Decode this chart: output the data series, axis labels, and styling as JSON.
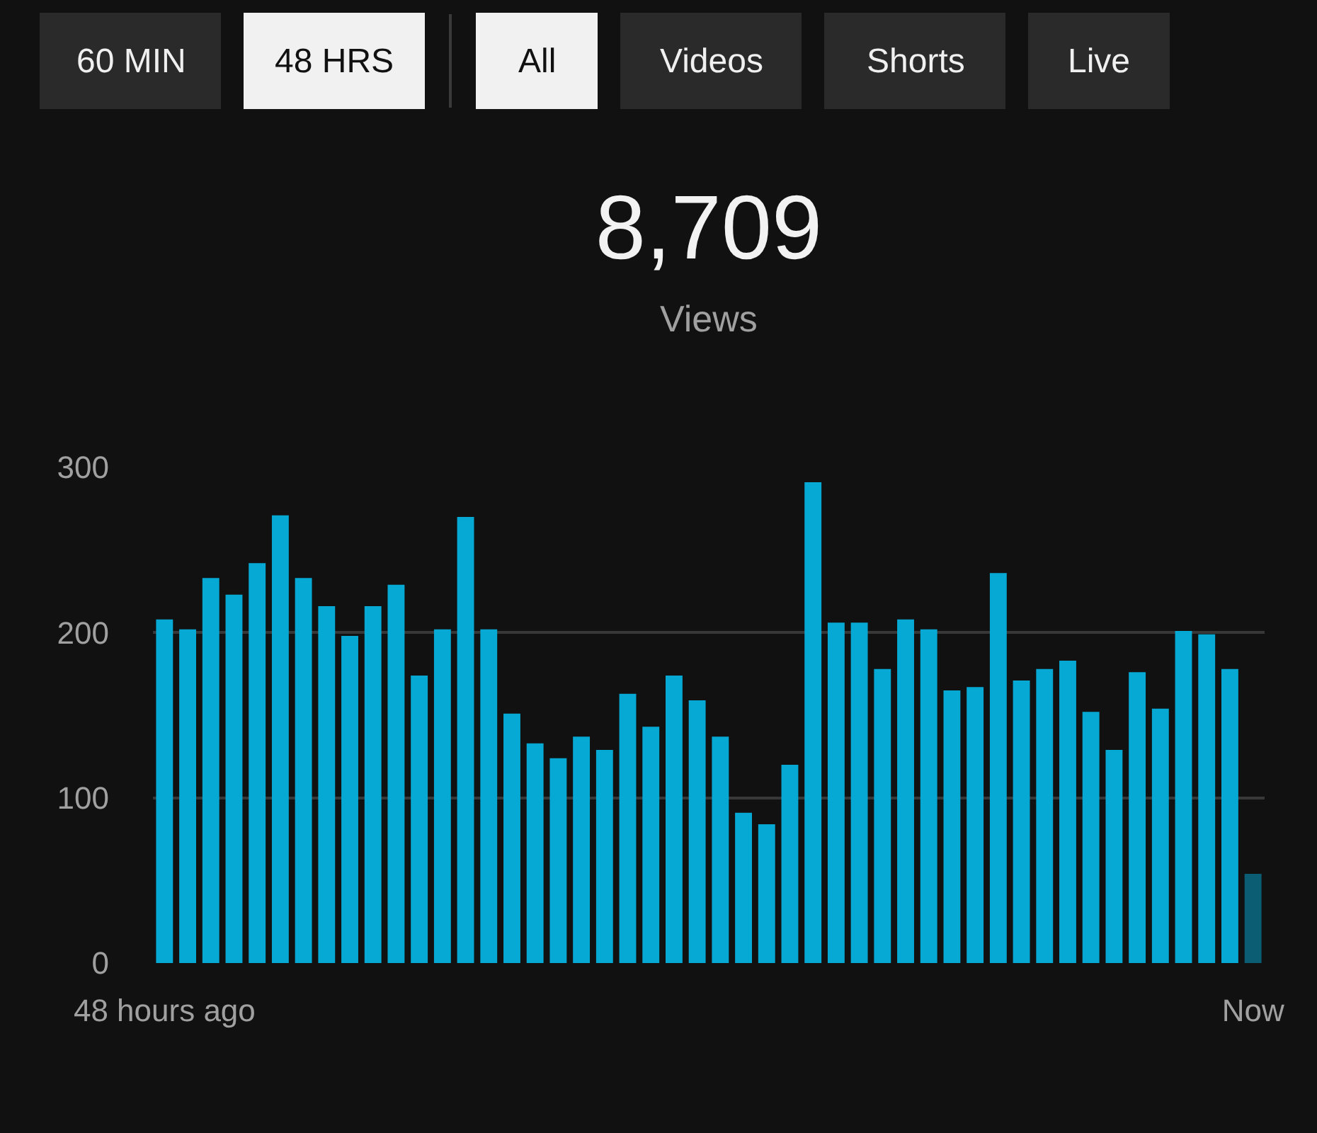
{
  "chart_data": {
    "type": "bar",
    "title": "8,709",
    "subtitle": "Views",
    "annotations": [
      "60 MIN",
      "48 HRS",
      "All",
      "Videos",
      "Shorts",
      "Live"
    ],
    "categories": [
      "48 hours ago",
      null,
      null,
      null,
      null,
      null,
      null,
      null,
      null,
      null,
      null,
      null,
      null,
      null,
      null,
      null,
      null,
      null,
      null,
      null,
      null,
      null,
      null,
      null,
      null,
      null,
      null,
      null,
      null,
      null,
      null,
      null,
      null,
      null,
      null,
      null,
      null,
      null,
      null,
      null,
      null,
      null,
      null,
      null,
      null,
      null,
      null,
      "Now"
    ],
    "values": [
      208,
      202,
      233,
      223,
      242,
      271,
      233,
      216,
      198,
      216,
      229,
      174,
      202,
      270,
      202,
      151,
      133,
      124,
      137,
      129,
      163,
      143,
      174,
      159,
      137,
      91,
      84,
      120,
      291,
      206,
      206,
      178,
      208,
      202,
      165,
      167,
      236,
      171,
      178,
      183,
      152,
      129,
      176,
      154,
      201,
      199,
      178,
      54
    ],
    "colors": [
      "#06a9d4",
      "#06a9d4",
      "#06a9d4",
      "#06a9d4",
      "#06a9d4",
      "#06a9d4",
      "#06a9d4",
      "#06a9d4",
      "#06a9d4",
      "#06a9d4",
      "#06a9d4",
      "#06a9d4",
      "#06a9d4",
      "#06a9d4",
      "#06a9d4",
      "#06a9d4",
      "#06a9d4",
      "#06a9d4",
      "#06a9d4",
      "#06a9d4",
      "#06a9d4",
      "#06a9d4",
      "#06a9d4",
      "#06a9d4",
      "#06a9d4",
      "#06a9d4",
      "#06a9d4",
      "#06a9d4",
      "#06a9d4",
      "#06a9d4",
      "#06a9d4",
      "#06a9d4",
      "#06a9d4",
      "#06a9d4",
      "#06a9d4",
      "#06a9d4",
      "#06a9d4",
      "#06a9d4",
      "#06a9d4",
      "#06a9d4",
      "#06a9d4",
      "#06a9d4",
      "#06a9d4",
      "#06a9d4",
      "#06a9d4",
      "#06a9d4",
      "#06a9d4",
      "#0b5d74"
    ],
    "ylim": [
      0,
      300
    ],
    "yticks": [
      0,
      100,
      200,
      300
    ],
    "grid": "y",
    "legend": false
  }
}
